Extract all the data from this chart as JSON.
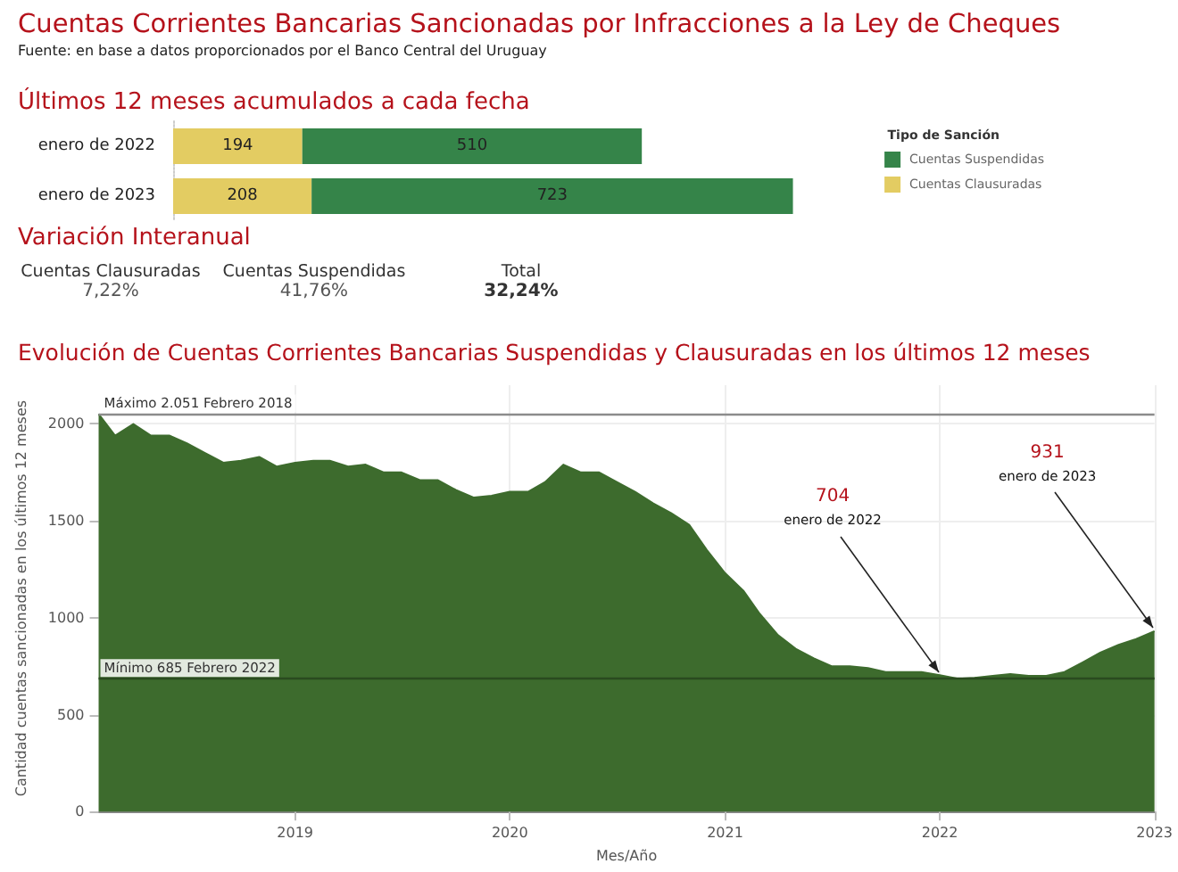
{
  "chart_data": [
    {
      "type": "other",
      "title": "Cuentas Corrientes Bancarias Sancionadas por Infracciones a la Ley de Cheques",
      "annotations": [
        "Fuente: en base a datos proporcionados por el Banco Central del Uruguay"
      ]
    },
    {
      "type": "bar",
      "title": "Últimos 12 meses acumulados a cada fecha",
      "orientation": "horizontal",
      "stacked": true,
      "data_labels": true,
      "legend": "right",
      "legend_title": "Tipo de Sanción",
      "categories": [
        "enero de 2022",
        "enero de 2023"
      ],
      "series": [
        {
          "name": "Cuentas Clausuradas",
          "color": "#e3cc62",
          "values": [
            194,
            208
          ]
        },
        {
          "name": "Cuentas Suspendidas",
          "color": "#358449",
          "values": [
            510,
            723
          ]
        }
      ]
    },
    {
      "type": "other",
      "title": "Variación Interanual",
      "annotations": [
        "Cuentas Clausuradas",
        "7,22%",
        "Cuentas Suspendidas",
        "41,76%",
        "Total",
        "32,24%"
      ]
    },
    {
      "type": "area",
      "title": "Evolución de Cuentas Corrientes Bancarias Suspendidas y Clausuradas en los últimos 12 meses",
      "xlabel": "Mes/Año",
      "ylabel": "Cantidad cuentas sancionadas en los últimos 12 meses",
      "grid": true,
      "legend": false,
      "marker": "none",
      "xlim": [
        "2018-02",
        "2023-01"
      ],
      "xticks": [
        "2019",
        "2020",
        "2021",
        "2022",
        "2023"
      ],
      "ylim": [
        0,
        2200
      ],
      "yticks": [
        0,
        500,
        1000,
        1500,
        2000
      ],
      "ref_lines": [
        {
          "axis": "y",
          "value": 2051,
          "label": "Máximo 2.051 Febrero 2018",
          "color": "#8c8c8c"
        },
        {
          "axis": "y",
          "value": 685,
          "label": "Mínimo 685 Febrero 2022",
          "color": "#2a4a1f"
        }
      ],
      "annotations": [
        {
          "text": "704\nenero de 2022",
          "x": "2022-01",
          "y": 704
        },
        {
          "text": "931\nenero de 2023",
          "x": "2023-01",
          "y": 931
        }
      ],
      "x": [
        "2018-02",
        "2018-03",
        "2018-04",
        "2018-05",
        "2018-06",
        "2018-07",
        "2018-08",
        "2018-09",
        "2018-10",
        "2018-11",
        "2018-12",
        "2019-01",
        "2019-02",
        "2019-03",
        "2019-04",
        "2019-05",
        "2019-06",
        "2019-07",
        "2019-08",
        "2019-09",
        "2019-10",
        "2019-11",
        "2019-12",
        "2020-01",
        "2020-02",
        "2020-03",
        "2020-04",
        "2020-05",
        "2020-06",
        "2020-07",
        "2020-08",
        "2020-09",
        "2020-10",
        "2020-11",
        "2020-12",
        "2021-01",
        "2021-02",
        "2021-03",
        "2021-04",
        "2021-05",
        "2021-06",
        "2021-07",
        "2021-08",
        "2021-09",
        "2021-10",
        "2021-11",
        "2021-12",
        "2022-01",
        "2022-02",
        "2022-03",
        "2022-04",
        "2022-05",
        "2022-06",
        "2022-07",
        "2022-08",
        "2022-09",
        "2022-10",
        "2022-11",
        "2022-12",
        "2023-01"
      ],
      "series": [
        {
          "color": "#3d6b2d",
          "values": [
            2051,
            1940,
            2000,
            1940,
            1940,
            1900,
            1850,
            1800,
            1810,
            1830,
            1780,
            1800,
            1810,
            1810,
            1780,
            1790,
            1750,
            1750,
            1710,
            1710,
            1660,
            1620,
            1630,
            1650,
            1650,
            1700,
            1790,
            1750,
            1750,
            1700,
            1650,
            1590,
            1540,
            1480,
            1350,
            1230,
            1140,
            1020,
            910,
            840,
            790,
            750,
            750,
            740,
            720,
            720,
            720,
            704,
            685,
            690,
            700,
            710,
            700,
            700,
            720,
            770,
            820,
            860,
            890,
            931
          ]
        }
      ]
    }
  ]
}
